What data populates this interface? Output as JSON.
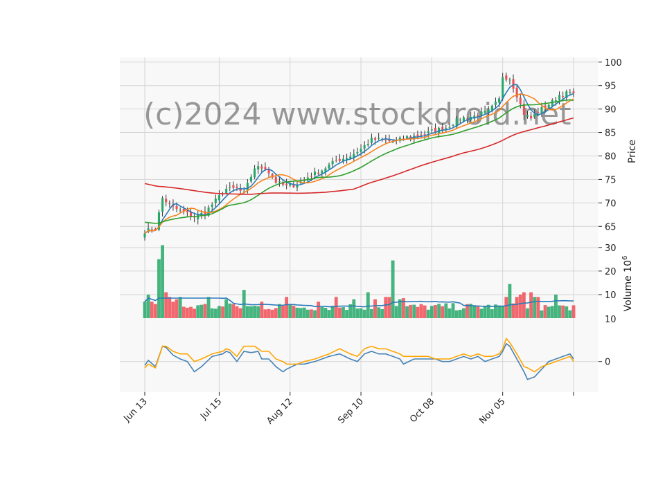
{
  "watermark": "(c)2024 www.stockdroid.net",
  "colors": {
    "up": "#26a869",
    "down": "#ef4d55",
    "panel_bg": "#f8f8f8",
    "grid": "#d4d4d4",
    "ma_fast": "#2a7ab8",
    "ma_mid": "#f5841f",
    "ma_slow": "#2ca02c",
    "ma_long": "#d62728",
    "vol_ma": "#2a7ab8",
    "osc_fast": "#4682b4",
    "osc_slow": "#ffa500"
  },
  "axes": {
    "price_label": "Price",
    "volume_label": "Volume",
    "volume_exponent": "10",
    "volume_exponent_power": "6",
    "osc_extra_tick": "10"
  },
  "chart_data": [
    {
      "type": "candlestick",
      "panel": "price",
      "ylabel": "Price",
      "ylim": [
        61.5,
        101
      ],
      "yticks": [
        65,
        70,
        75,
        80,
        85,
        90,
        95,
        100
      ],
      "x_range": [
        0,
        123
      ],
      "xticks": [
        {
          "x": 0,
          "label": "Jun 13"
        },
        {
          "x": 21,
          "label": "Jul 15"
        },
        {
          "x": 41,
          "label": "Aug 12"
        },
        {
          "x": 61,
          "label": "Sep 10"
        },
        {
          "x": 81,
          "label": "Oct 08"
        },
        {
          "x": 101,
          "label": "Nov 05"
        },
        {
          "x": 121,
          "label": ""
        }
      ],
      "grid": true,
      "anchors": [
        [
          0,
          64
        ],
        [
          3,
          64.5
        ],
        [
          5,
          71
        ],
        [
          8,
          69
        ],
        [
          11,
          68
        ],
        [
          14,
          67
        ],
        [
          17,
          68
        ],
        [
          20,
          70.5
        ],
        [
          23,
          73
        ],
        [
          26,
          73
        ],
        [
          28,
          72
        ],
        [
          31,
          77.5
        ],
        [
          34,
          77.5
        ],
        [
          37,
          74.5
        ],
        [
          40,
          73.5
        ],
        [
          43,
          74
        ],
        [
          46,
          75.5
        ],
        [
          50,
          77
        ],
        [
          54,
          79
        ],
        [
          58,
          80
        ],
        [
          61,
          81.5
        ],
        [
          64,
          83.5
        ],
        [
          67,
          83.5
        ],
        [
          70,
          83
        ],
        [
          74,
          84
        ],
        [
          78,
          84.5
        ],
        [
          82,
          85.5
        ],
        [
          85,
          86
        ],
        [
          89,
          88
        ],
        [
          93,
          88.5
        ],
        [
          97,
          89.5
        ],
        [
          100,
          92
        ],
        [
          101,
          97
        ],
        [
          103,
          96.5
        ],
        [
          105,
          93
        ],
        [
          107,
          89
        ],
        [
          109,
          88
        ],
        [
          111,
          89.5
        ],
        [
          113,
          90.5
        ],
        [
          115,
          91.5
        ],
        [
          117,
          93
        ],
        [
          120,
          93.5
        ],
        [
          121,
          93
        ]
      ],
      "moving_averages": [
        {
          "period": 5,
          "color": "#2a7ab8"
        },
        {
          "period": 10,
          "color": "#f5841f"
        },
        {
          "period": 20,
          "color": "#2ca02c"
        },
        {
          "period": 60,
          "color": "#d62728",
          "start": 74.3
        }
      ]
    },
    {
      "type": "bar",
      "panel": "volume",
      "ylabel": "Volume",
      "unit": "1e6",
      "ylim": [
        0,
        32
      ],
      "yticks": [
        10,
        20,
        30
      ],
      "base_level": 5,
      "spikes": [
        [
          0,
          7
        ],
        [
          1,
          10
        ],
        [
          2,
          7
        ],
        [
          3,
          6
        ],
        [
          4,
          25
        ],
        [
          5,
          31
        ],
        [
          6,
          11
        ],
        [
          7,
          9
        ],
        [
          8,
          7
        ],
        [
          9,
          8
        ],
        [
          10,
          9
        ],
        [
          17,
          6
        ],
        [
          18,
          9
        ],
        [
          23,
          8
        ],
        [
          25,
          6
        ],
        [
          28,
          12
        ],
        [
          33,
          7
        ],
        [
          38,
          6
        ],
        [
          40,
          9
        ],
        [
          49,
          7
        ],
        [
          54,
          9
        ],
        [
          59,
          8
        ],
        [
          63,
          11
        ],
        [
          65,
          8
        ],
        [
          68,
          9
        ],
        [
          69,
          9
        ],
        [
          70,
          24.5
        ],
        [
          72,
          8
        ],
        [
          73,
          8.5
        ],
        [
          102,
          9
        ],
        [
          103,
          14.5
        ],
        [
          105,
          9
        ],
        [
          106,
          10
        ],
        [
          107,
          11
        ],
        [
          109,
          11
        ],
        [
          110,
          9
        ],
        [
          111,
          9
        ],
        [
          116,
          10
        ],
        [
          119,
          5
        ],
        [
          122,
          6
        ]
      ],
      "volume_ma": {
        "period": 20,
        "color": "#2a7ab8"
      }
    },
    {
      "type": "line",
      "panel": "oscillator",
      "ylim": [
        -12,
        17
      ],
      "yticks": [
        0
      ],
      "series": [
        {
          "name": "",
          "color": "#4682b4",
          "anchors": [
            [
              0,
              -1.5
            ],
            [
              1,
              0.5
            ],
            [
              3,
              -2
            ],
            [
              5,
              6
            ],
            [
              6,
              5.5
            ],
            [
              8,
              2.5
            ],
            [
              10,
              1
            ],
            [
              12,
              0
            ],
            [
              14,
              -4
            ],
            [
              16,
              -2
            ],
            [
              19,
              2
            ],
            [
              22,
              3
            ],
            [
              23,
              4
            ],
            [
              24,
              3.5
            ],
            [
              26,
              0
            ],
            [
              28,
              4
            ],
            [
              30,
              3.5
            ],
            [
              32,
              4
            ],
            [
              33,
              1
            ],
            [
              35,
              1
            ],
            [
              37,
              -2
            ],
            [
              39,
              -4
            ],
            [
              40,
              -3
            ],
            [
              43,
              -1
            ],
            [
              45,
              -1
            ],
            [
              48,
              0
            ],
            [
              52,
              2
            ],
            [
              55,
              3
            ],
            [
              58,
              1
            ],
            [
              60,
              0
            ],
            [
              62,
              3
            ],
            [
              64,
              4
            ],
            [
              66,
              3
            ],
            [
              68,
              3
            ],
            [
              70,
              2
            ],
            [
              72,
              1
            ],
            [
              73,
              -1
            ],
            [
              76,
              1
            ],
            [
              80,
              1
            ],
            [
              82,
              1
            ],
            [
              84,
              0
            ],
            [
              86,
              0
            ],
            [
              88,
              1
            ],
            [
              90,
              2
            ],
            [
              92,
              1
            ],
            [
              94,
              2
            ],
            [
              96,
              0
            ],
            [
              98,
              1
            ],
            [
              100,
              2
            ],
            [
              101,
              4
            ],
            [
              102,
              7
            ],
            [
              103,
              6
            ],
            [
              105,
              1
            ],
            [
              107,
              -4
            ],
            [
              108,
              -7
            ],
            [
              110,
              -6
            ],
            [
              112,
              -3
            ],
            [
              114,
              0
            ],
            [
              116,
              1
            ],
            [
              118,
              2
            ],
            [
              120,
              3
            ],
            [
              121,
              1
            ]
          ]
        },
        {
          "name": "",
          "color": "#ffa500",
          "anchors": [
            [
              0,
              -2.5
            ],
            [
              1,
              -1
            ],
            [
              3,
              -2.5
            ],
            [
              5,
              6
            ],
            [
              6,
              6
            ],
            [
              8,
              4
            ],
            [
              10,
              3
            ],
            [
              12,
              3
            ],
            [
              14,
              0
            ],
            [
              16,
              1
            ],
            [
              19,
              3
            ],
            [
              22,
              4
            ],
            [
              23,
              5
            ],
            [
              24,
              4.5
            ],
            [
              26,
              2
            ],
            [
              28,
              6
            ],
            [
              30,
              6
            ],
            [
              31,
              6
            ],
            [
              33,
              4
            ],
            [
              35,
              4
            ],
            [
              37,
              1
            ],
            [
              39,
              0
            ],
            [
              40,
              -1
            ],
            [
              43,
              -1
            ],
            [
              45,
              0
            ],
            [
              48,
              1
            ],
            [
              52,
              3
            ],
            [
              55,
              5
            ],
            [
              58,
              3
            ],
            [
              60,
              2
            ],
            [
              62,
              5
            ],
            [
              64,
              6
            ],
            [
              66,
              5
            ],
            [
              68,
              5
            ],
            [
              70,
              4
            ],
            [
              72,
              3
            ],
            [
              73,
              2
            ],
            [
              76,
              2
            ],
            [
              80,
              2
            ],
            [
              82,
              1
            ],
            [
              84,
              1
            ],
            [
              86,
              1
            ],
            [
              88,
              2
            ],
            [
              90,
              3
            ],
            [
              92,
              2
            ],
            [
              94,
              3
            ],
            [
              96,
              2
            ],
            [
              98,
              2
            ],
            [
              100,
              3
            ],
            [
              101,
              5
            ],
            [
              102,
              9
            ],
            [
              103,
              7.5
            ],
            [
              105,
              3
            ],
            [
              107,
              -2
            ],
            [
              108,
              -2.5
            ],
            [
              110,
              -4
            ],
            [
              112,
              -2
            ],
            [
              114,
              -1
            ],
            [
              116,
              0
            ],
            [
              118,
              1
            ],
            [
              120,
              2
            ],
            [
              121,
              0
            ]
          ]
        }
      ]
    }
  ]
}
